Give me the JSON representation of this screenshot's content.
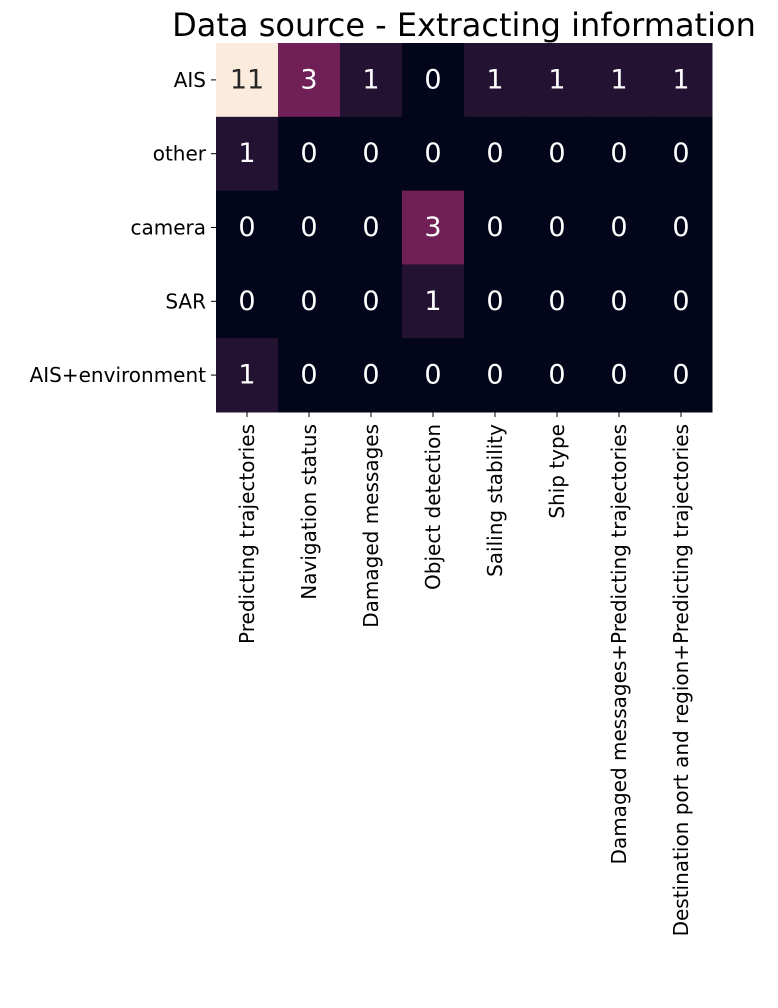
{
  "chart_data": {
    "type": "heatmap",
    "title": "Data source - Extracting information",
    "xlabel": "",
    "ylabel": "",
    "rows": [
      "AIS",
      "other",
      "camera",
      "SAR",
      "AIS+environment"
    ],
    "columns": [
      "Predicting trajectories",
      "Navigation status",
      "Damaged messages",
      "Object detection",
      "Sailing stability",
      "Ship type",
      "Damaged messages+Predicting trajectories",
      "Destination port and region+Predicting trajectories"
    ],
    "values": [
      [
        11,
        3,
        1,
        0,
        1,
        1,
        1,
        1
      ],
      [
        1,
        0,
        0,
        0,
        0,
        0,
        0,
        0
      ],
      [
        0,
        0,
        0,
        3,
        0,
        0,
        0,
        0
      ],
      [
        0,
        0,
        0,
        1,
        0,
        0,
        0,
        0
      ],
      [
        1,
        0,
        0,
        0,
        0,
        0,
        0,
        0
      ]
    ],
    "value_range": [
      0,
      11
    ],
    "colorbar": false,
    "grid": false,
    "colormap": {
      "name": "rocket",
      "stops": [
        {
          "value": 0,
          "color": "#03051a"
        },
        {
          "value": 1,
          "color": "#231231"
        },
        {
          "value": 3,
          "color": "#701f57"
        },
        {
          "value": 11,
          "color": "#faebdd"
        }
      ]
    },
    "annotation_colors": {
      "light": "#ffffff",
      "dark": "#262626"
    }
  }
}
